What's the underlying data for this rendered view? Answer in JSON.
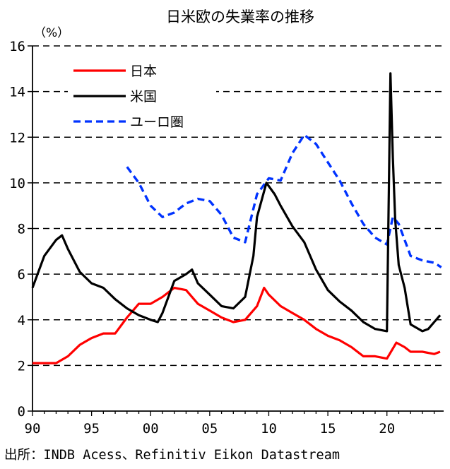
{
  "chart_data": {
    "type": "line",
    "title": "日米欧の失業率の推移",
    "ylabel": "（%）",
    "xlabel": "",
    "ylim": [
      0,
      16
    ],
    "xlim": [
      1990,
      2024.8
    ],
    "yticks": [
      "0",
      "2",
      "4",
      "6",
      "8",
      "10",
      "12",
      "14",
      "16"
    ],
    "xticks": [
      {
        "year": 1990,
        "label": "90"
      },
      {
        "year": 1995,
        "label": "95"
      },
      {
        "year": 2000,
        "label": "00"
      },
      {
        "year": 2005,
        "label": "05"
      },
      {
        "year": 2010,
        "label": "10"
      },
      {
        "year": 2015,
        "label": "15"
      },
      {
        "year": 2020,
        "label": "20"
      }
    ],
    "grid": true,
    "legend_position": "top-left",
    "series": [
      {
        "name": "日本",
        "color": "#ff0000",
        "style": "solid",
        "points": [
          [
            1990.0,
            2.1
          ],
          [
            1991.0,
            2.1
          ],
          [
            1992.0,
            2.1
          ],
          [
            1993.0,
            2.4
          ],
          [
            1994.0,
            2.9
          ],
          [
            1995.0,
            3.2
          ],
          [
            1996.0,
            3.4
          ],
          [
            1997.0,
            3.4
          ],
          [
            1998.0,
            4.1
          ],
          [
            1998.5,
            4.4
          ],
          [
            1999.0,
            4.7
          ],
          [
            2000.0,
            4.7
          ],
          [
            2001.0,
            5.0
          ],
          [
            2002.0,
            5.4
          ],
          [
            2003.0,
            5.3
          ],
          [
            2004.0,
            4.7
          ],
          [
            2005.0,
            4.4
          ],
          [
            2006.0,
            4.1
          ],
          [
            2007.0,
            3.9
          ],
          [
            2008.0,
            4.0
          ],
          [
            2009.0,
            4.6
          ],
          [
            2009.6,
            5.4
          ],
          [
            2010.0,
            5.1
          ],
          [
            2011.0,
            4.6
          ],
          [
            2012.0,
            4.3
          ],
          [
            2013.0,
            4.0
          ],
          [
            2014.0,
            3.6
          ],
          [
            2015.0,
            3.3
          ],
          [
            2016.0,
            3.1
          ],
          [
            2017.0,
            2.8
          ],
          [
            2018.0,
            2.4
          ],
          [
            2019.0,
            2.4
          ],
          [
            2020.0,
            2.3
          ],
          [
            2020.8,
            3.0
          ],
          [
            2021.5,
            2.8
          ],
          [
            2022.0,
            2.6
          ],
          [
            2023.0,
            2.6
          ],
          [
            2024.0,
            2.5
          ],
          [
            2024.5,
            2.6
          ]
        ]
      },
      {
        "name": "米国",
        "color": "#000000",
        "style": "solid",
        "points": [
          [
            1990.0,
            5.4
          ],
          [
            1991.0,
            6.8
          ],
          [
            1992.0,
            7.5
          ],
          [
            1992.5,
            7.7
          ],
          [
            1993.0,
            7.1
          ],
          [
            1994.0,
            6.1
          ],
          [
            1995.0,
            5.6
          ],
          [
            1996.0,
            5.4
          ],
          [
            1997.0,
            4.9
          ],
          [
            1998.0,
            4.5
          ],
          [
            1999.0,
            4.2
          ],
          [
            2000.0,
            4.0
          ],
          [
            2000.6,
            3.9
          ],
          [
            2001.0,
            4.3
          ],
          [
            2002.0,
            5.7
          ],
          [
            2003.0,
            6.0
          ],
          [
            2003.5,
            6.2
          ],
          [
            2004.0,
            5.6
          ],
          [
            2005.0,
            5.1
          ],
          [
            2006.0,
            4.6
          ],
          [
            2007.0,
            4.5
          ],
          [
            2008.0,
            5.0
          ],
          [
            2008.7,
            6.8
          ],
          [
            2009.0,
            8.5
          ],
          [
            2009.8,
            10.0
          ],
          [
            2010.5,
            9.5
          ],
          [
            2011.0,
            9.0
          ],
          [
            2012.0,
            8.1
          ],
          [
            2013.0,
            7.4
          ],
          [
            2014.0,
            6.2
          ],
          [
            2015.0,
            5.3
          ],
          [
            2016.0,
            4.8
          ],
          [
            2017.0,
            4.4
          ],
          [
            2018.0,
            3.9
          ],
          [
            2019.0,
            3.6
          ],
          [
            2020.0,
            3.5
          ],
          [
            2020.3,
            14.8
          ],
          [
            2020.5,
            11.1
          ],
          [
            2020.7,
            8.4
          ],
          [
            2021.0,
            6.4
          ],
          [
            2021.5,
            5.4
          ],
          [
            2022.0,
            3.8
          ],
          [
            2023.0,
            3.5
          ],
          [
            2023.5,
            3.6
          ],
          [
            2024.0,
            3.9
          ],
          [
            2024.5,
            4.2
          ]
        ]
      },
      {
        "name": "ユーロ圏",
        "color": "#0033ff",
        "style": "dashed",
        "points": [
          [
            1998.0,
            10.7
          ],
          [
            1999.0,
            10.0
          ],
          [
            2000.0,
            9.0
          ],
          [
            2001.0,
            8.5
          ],
          [
            2002.0,
            8.7
          ],
          [
            2003.0,
            9.1
          ],
          [
            2004.0,
            9.3
          ],
          [
            2005.0,
            9.2
          ],
          [
            2006.0,
            8.6
          ],
          [
            2007.0,
            7.6
          ],
          [
            2008.0,
            7.4
          ],
          [
            2009.0,
            9.5
          ],
          [
            2010.0,
            10.2
          ],
          [
            2011.0,
            10.1
          ],
          [
            2012.0,
            11.3
          ],
          [
            2013.0,
            12.1
          ],
          [
            2014.0,
            11.7
          ],
          [
            2015.0,
            10.9
          ],
          [
            2016.0,
            10.1
          ],
          [
            2017.0,
            9.1
          ],
          [
            2018.0,
            8.2
          ],
          [
            2019.0,
            7.6
          ],
          [
            2020.0,
            7.3
          ],
          [
            2020.5,
            8.5
          ],
          [
            2021.0,
            8.2
          ],
          [
            2022.0,
            6.8
          ],
          [
            2023.0,
            6.6
          ],
          [
            2024.0,
            6.5
          ],
          [
            2024.6,
            6.3
          ]
        ]
      }
    ],
    "source": "出所：INDB Acess、Refinitiv Eikon Datastream"
  }
}
